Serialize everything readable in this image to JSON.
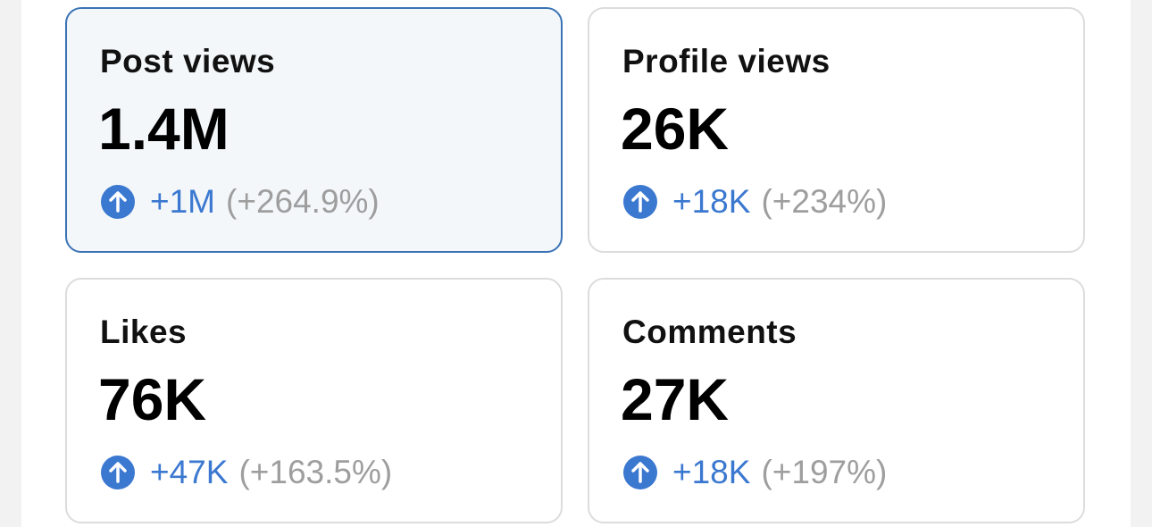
{
  "cards": [
    {
      "label": "Post views",
      "value": "1.4M",
      "change": "+1M",
      "percent": "(+264.9%)",
      "selected": true
    },
    {
      "label": "Profile views",
      "value": "26K",
      "change": "+18K",
      "percent": "(+234%)",
      "selected": false
    },
    {
      "label": "Likes",
      "value": "76K",
      "change": "+47K",
      "percent": "(+163.5%)",
      "selected": false
    },
    {
      "label": "Comments",
      "value": "27K",
      "change": "+18K",
      "percent": "(+197%)",
      "selected": false
    }
  ]
}
